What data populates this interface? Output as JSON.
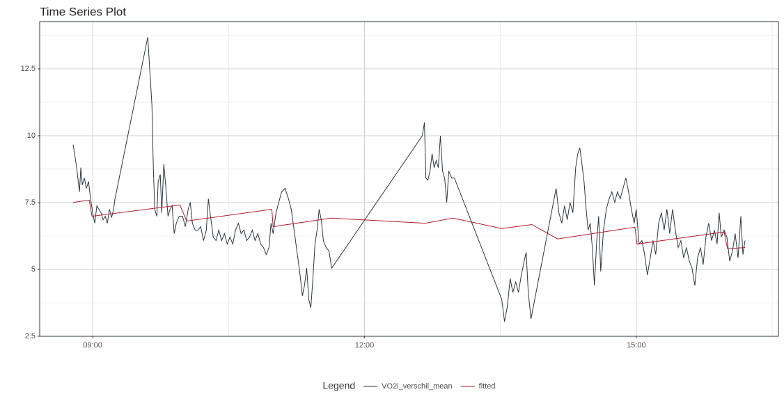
{
  "chart_data": {
    "type": "line",
    "title": "Time Series Plot",
    "legend_title": "Legend",
    "legend_position": "bottom",
    "grid": true,
    "xlim": [
      8.415,
      16.569
    ],
    "xticks": [
      {
        "value": 9,
        "label": "09:00"
      },
      {
        "value": 12,
        "label": "12:00"
      },
      {
        "value": 15,
        "label": "15:00"
      }
    ],
    "ylim": [
      2.5,
      14.27
    ],
    "yticks": [
      2.5,
      5.0,
      7.5,
      10.0,
      12.5
    ],
    "yticks_labels_note_free": null,
    "series": [
      {
        "name": "VO2i_verschil_mean",
        "color": "#2b3640",
        "x": [
          8.785,
          8.823,
          8.854,
          8.869,
          8.885,
          8.908,
          8.931,
          8.954,
          8.977,
          9.0,
          9.023,
          9.046,
          9.069,
          9.092,
          9.115,
          9.138,
          9.162,
          9.185,
          9.208,
          9.231,
          9.246,
          9.262,
          9.608,
          9.654,
          9.669,
          9.685,
          9.708,
          9.723,
          9.746,
          9.762,
          9.785,
          9.808,
          9.831,
          9.854,
          9.877,
          9.9,
          9.923,
          9.954,
          9.992,
          10.023,
          10.054,
          10.077,
          10.1,
          10.131,
          10.162,
          10.192,
          10.223,
          10.254,
          10.277,
          10.3,
          10.331,
          10.362,
          10.392,
          10.423,
          10.454,
          10.485,
          10.515,
          10.546,
          10.577,
          10.608,
          10.638,
          10.669,
          10.7,
          10.731,
          10.762,
          10.792,
          10.823,
          10.854,
          10.885,
          10.915,
          10.946,
          10.969,
          10.992,
          11.023,
          11.054,
          11.085,
          11.123,
          11.162,
          11.192,
          11.223,
          11.254,
          11.285,
          11.315,
          11.338,
          11.362,
          11.385,
          11.408,
          11.431,
          11.454,
          11.477,
          11.5,
          11.523,
          11.546,
          11.577,
          11.608,
          11.638,
          12.638,
          12.662,
          12.677,
          12.7,
          12.723,
          12.746,
          12.769,
          12.792,
          12.815,
          12.838,
          12.862,
          12.885,
          12.908,
          12.931,
          12.962,
          12.992,
          13.515,
          13.546,
          13.577,
          13.608,
          13.638,
          13.669,
          13.7,
          13.731,
          13.762,
          13.785,
          13.808,
          13.838,
          14.115,
          14.146,
          14.177,
          14.208,
          14.238,
          14.269,
          14.3,
          14.331,
          14.354,
          14.377,
          14.4,
          14.423,
          14.446,
          14.469,
          14.492,
          14.515,
          14.538,
          14.562,
          14.585,
          14.608,
          14.638,
          14.669,
          14.7,
          14.731,
          14.762,
          14.792,
          14.823,
          14.854,
          14.885,
          14.915,
          14.946,
          14.977,
          15.0,
          15.031,
          15.062,
          15.092,
          15.123,
          15.154,
          15.185,
          15.215,
          15.246,
          15.277,
          15.308,
          15.338,
          15.369,
          15.4,
          15.431,
          15.462,
          15.492,
          15.523,
          15.554,
          15.585,
          15.615,
          15.646,
          15.677,
          15.708,
          15.738,
          15.769,
          15.8,
          15.831,
          15.862,
          15.892,
          15.915,
          15.938,
          15.969,
          16.0,
          16.031,
          16.062,
          16.092,
          16.123,
          16.154,
          16.177,
          16.2
        ],
        "values": [
          9.67,
          8.81,
          7.9,
          8.81,
          8.16,
          8.42,
          8.03,
          8.29,
          7.64,
          7.12,
          6.73,
          7.38,
          7.25,
          7.12,
          6.86,
          6.99,
          6.73,
          7.25,
          6.94,
          7.25,
          7.64,
          7.9,
          13.69,
          11.15,
          8.81,
          7.25,
          6.99,
          8.29,
          8.55,
          7.12,
          8.94,
          8.03,
          6.99,
          7.25,
          7.38,
          6.34,
          6.73,
          6.99,
          6.99,
          6.6,
          7.25,
          7.51,
          6.73,
          6.47,
          6.47,
          6.6,
          6.08,
          6.47,
          7.64,
          6.99,
          6.21,
          6.08,
          6.47,
          6.08,
          6.34,
          5.95,
          6.21,
          5.95,
          6.47,
          6.73,
          6.34,
          6.47,
          6.08,
          6.21,
          6.47,
          6.08,
          6.34,
          5.95,
          5.82,
          5.56,
          5.82,
          6.73,
          6.34,
          7.12,
          7.51,
          7.9,
          8.03,
          7.64,
          7.25,
          6.47,
          5.69,
          4.92,
          4.01,
          4.4,
          5.05,
          3.88,
          3.56,
          4.66,
          5.95,
          6.47,
          7.25,
          6.86,
          6.08,
          5.82,
          5.69,
          5.05,
          10.0,
          10.5,
          8.42,
          8.34,
          8.68,
          9.33,
          8.81,
          9.07,
          8.81,
          10.0,
          8.68,
          8.42,
          7.51,
          8.68,
          8.42,
          8.42,
          3.88,
          3.05,
          3.62,
          4.66,
          4.14,
          4.53,
          4.14,
          4.79,
          5.31,
          5.64,
          4.14,
          3.15,
          8.03,
          7.12,
          6.73,
          7.38,
          6.86,
          7.51,
          7.12,
          8.81,
          9.33,
          9.54,
          8.94,
          8.29,
          7.25,
          6.47,
          6.73,
          5.82,
          4.4,
          5.95,
          6.99,
          4.92,
          6.47,
          7.25,
          7.64,
          7.9,
          7.51,
          7.9,
          7.64,
          8.03,
          8.42,
          7.9,
          7.25,
          6.73,
          7.25,
          5.95,
          6.08,
          5.56,
          4.79,
          5.43,
          6.08,
          5.56,
          6.73,
          7.12,
          6.47,
          7.25,
          6.34,
          7.25,
          6.47,
          5.82,
          6.08,
          5.43,
          5.82,
          5.31,
          5.05,
          4.4,
          5.43,
          5.82,
          5.18,
          6.21,
          6.73,
          6.08,
          6.47,
          5.95,
          7.12,
          6.21,
          6.47,
          6.21,
          5.31,
          5.69,
          6.34,
          5.43,
          6.99,
          5.56,
          6.08
        ]
      },
      {
        "name": "fitted",
        "color": "#b2182b",
        "x": [
          8.785,
          8.962,
          8.992,
          9.962,
          10.038,
          10.977,
          10.992,
          11.631,
          12.669,
          12.977,
          13.515,
          13.846,
          14.131,
          14.985,
          15.008,
          15.969,
          16.008,
          16.2
        ],
        "values": [
          7.51,
          7.59,
          6.99,
          7.41,
          6.81,
          7.25,
          6.6,
          6.92,
          6.73,
          6.92,
          6.53,
          6.68,
          6.14,
          6.58,
          5.95,
          6.4,
          5.77,
          5.82
        ]
      }
    ]
  }
}
